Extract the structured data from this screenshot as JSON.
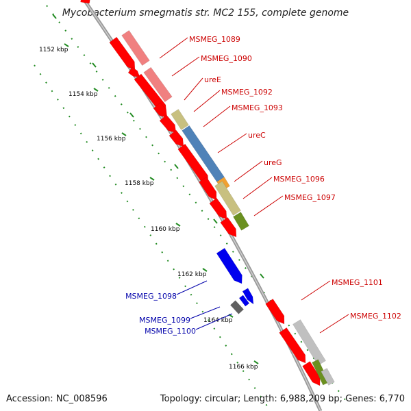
{
  "title": "Mycobacterium smegmatis str. MC2 155, complete genome",
  "footer": {
    "accession": "Accession: NC_008596",
    "stats": "Topology: circular; Length: 6,988,209 bp; Genes: 6,770"
  },
  "colors": {
    "forward_gene": "#ff0000",
    "reverse_gene": "#0000ee",
    "forward_label": "#cc0000",
    "reverse_label": "#0000aa",
    "pseudo_gene": "#f08080",
    "ureA_like": "#c8c080",
    "ureC": "#4f82b8",
    "ureG": "#f0a030",
    "olive": "#6a9020",
    "gray_gene": "#c0c0c0",
    "dark_gene": "#606060",
    "backbone": "#999999",
    "ruler": "#228b22"
  },
  "ticks": [
    "1152 kbp",
    "1154 kbp",
    "1156 kbp",
    "1158 kbp",
    "1160 kbp",
    "1162 kbp",
    "1164 kbp",
    "1166 kbp"
  ],
  "labels": {
    "forward": [
      "MSMEG_1089",
      "MSMEG_1090",
      "ureE",
      "MSMEG_1092",
      "MSMEG_1093",
      "ureC",
      "ureG",
      "MSMEG_1096",
      "MSMEG_1097",
      "MSMEG_1101",
      "MSMEG_1102"
    ],
    "reverse": [
      "MSMEG_1098",
      "MSMEG_1099",
      "MSMEG_1100"
    ]
  }
}
